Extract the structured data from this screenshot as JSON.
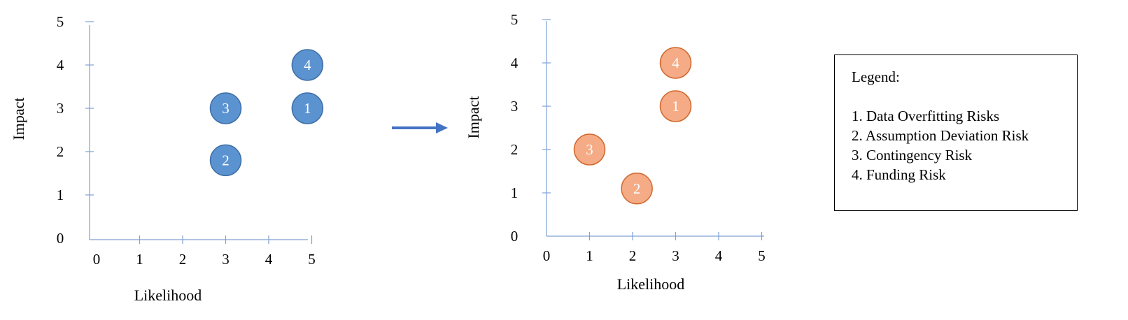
{
  "colors": {
    "axis": "#7fa1d4",
    "text": "#000000",
    "arrow": "#4472c4",
    "before_fill": "#5b93d0",
    "before_stroke": "#3f6fa6",
    "after_fill": "#f4ab86",
    "after_stroke": "#d2692e",
    "bubble_label": "#ffffff"
  },
  "arrow": {
    "icon": "right-arrow-icon"
  },
  "legend": {
    "title": "Legend:",
    "items": [
      "1. Data Overfitting Risks",
      "2. Assumption Deviation Risk",
      "3. Contingency Risk",
      "4. Funding Risk"
    ]
  },
  "chart_data": [
    {
      "type": "scatter",
      "xlabel": "Likelihood",
      "ylabel": "Impact",
      "xlim": [
        0,
        5
      ],
      "ylim": [
        0,
        5
      ],
      "x_ticks": [
        "0",
        "1",
        "2",
        "3",
        "4",
        "5"
      ],
      "y_ticks": [
        "0",
        "1",
        "2",
        "3",
        "4",
        "5"
      ],
      "grid": false,
      "points": [
        {
          "label": "1",
          "x": 4.9,
          "y": 3.0
        },
        {
          "label": "2",
          "x": 3.0,
          "y": 1.8
        },
        {
          "label": "3",
          "x": 3.0,
          "y": 3.0
        },
        {
          "label": "4",
          "x": 4.9,
          "y": 4.0
        }
      ]
    },
    {
      "type": "scatter",
      "xlabel": "Likelihood",
      "ylabel": "Impact",
      "xlim": [
        0,
        5
      ],
      "ylim": [
        0,
        5
      ],
      "x_ticks": [
        "0",
        "1",
        "2",
        "3",
        "4",
        "5"
      ],
      "y_ticks": [
        "0",
        "1",
        "2",
        "3",
        "4",
        "5"
      ],
      "grid": false,
      "points": [
        {
          "label": "1",
          "x": 3.0,
          "y": 3.0
        },
        {
          "label": "2",
          "x": 2.1,
          "y": 1.1
        },
        {
          "label": "3",
          "x": 1.0,
          "y": 2.0
        },
        {
          "label": "4",
          "x": 3.0,
          "y": 4.0
        }
      ]
    }
  ]
}
